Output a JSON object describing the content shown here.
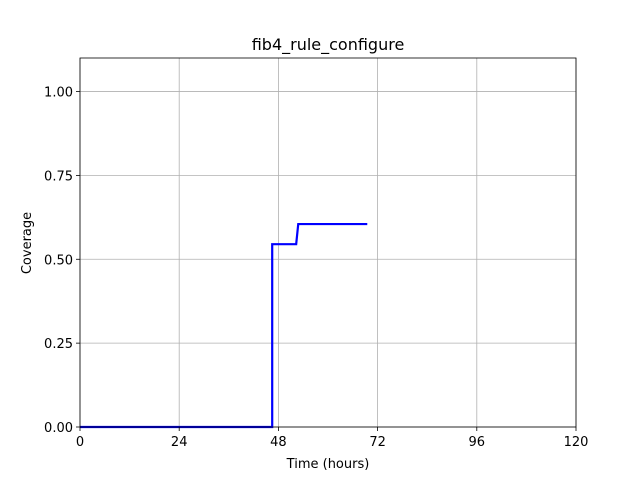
{
  "chart_data": {
    "type": "line",
    "title": "fib4_rule_configure",
    "xlabel": "Time (hours)",
    "ylabel": "Coverage",
    "xlim": [
      0,
      120
    ],
    "ylim": [
      0,
      1.1
    ],
    "xticks": [
      0,
      24,
      48,
      72,
      96,
      120
    ],
    "xtick_labels": [
      "0",
      "24",
      "48",
      "72",
      "96",
      "120"
    ],
    "yticks": [
      0.0,
      0.25,
      0.5,
      0.75,
      1.0
    ],
    "ytick_labels": [
      "0.00",
      "0.25",
      "0.50",
      "0.75",
      "1.00"
    ],
    "grid": true,
    "series": [
      {
        "color": "#0000ff",
        "drawstyle": "steps",
        "x": [
          0,
          46.5,
          46.5,
          52.3,
          52.8,
          69.5
        ],
        "y": [
          0.0,
          0.0,
          0.545,
          0.545,
          0.605,
          0.605
        ]
      }
    ]
  }
}
